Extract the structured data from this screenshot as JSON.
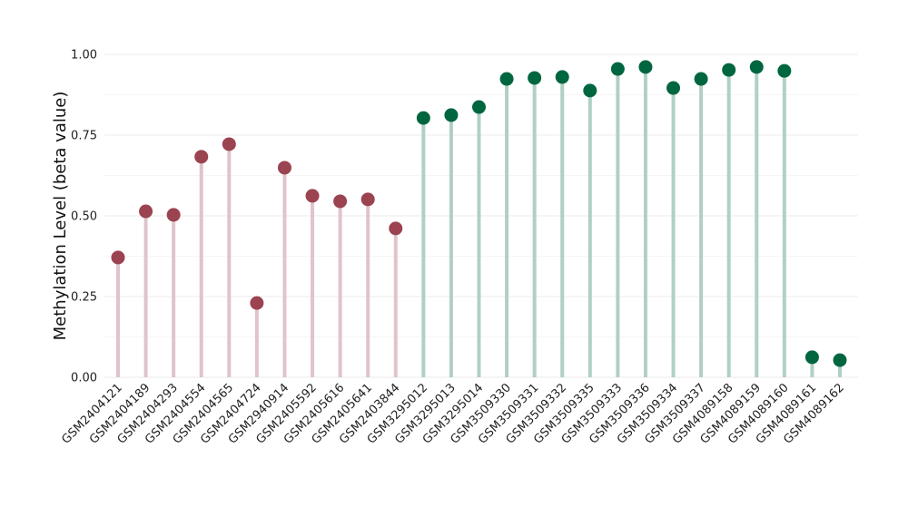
{
  "chart_data": {
    "type": "lollipop",
    "title": "",
    "xlabel": "",
    "ylabel": "Methylation Level (beta value)",
    "ylim": [
      0,
      1
    ],
    "yticks": [
      "0.00",
      "0.25",
      "0.50",
      "0.75",
      "1.00"
    ],
    "grid": true,
    "legend": "none",
    "colors": {
      "group1": "#9b4350",
      "group1_stem": "#e0c4c9",
      "group2": "#00663f",
      "group2_stem": "#b0d0c4"
    },
    "categories": [
      "GSM2404121",
      "GSM2404189",
      "GSM2404293",
      "GSM2404554",
      "GSM2404565",
      "GSM2404724",
      "GSM2940914",
      "GSM2405592",
      "GSM2405616",
      "GSM2405641",
      "GSM2403844",
      "GSM3295012",
      "GSM3295013",
      "GSM3295014",
      "GSM3509330",
      "GSM3509331",
      "GSM3509332",
      "GSM3509335",
      "GSM3509333",
      "GSM3509336",
      "GSM3509334",
      "GSM3509337",
      "GSM4089158",
      "GSM4089159",
      "GSM4089160",
      "GSM4089161",
      "GSM4089162"
    ],
    "values": [
      0.371,
      0.514,
      0.503,
      0.683,
      0.722,
      0.23,
      0.649,
      0.562,
      0.545,
      0.551,
      0.461,
      0.803,
      0.812,
      0.837,
      0.924,
      0.927,
      0.93,
      0.888,
      0.955,
      0.961,
      0.896,
      0.924,
      0.952,
      0.961,
      0.949,
      0.062,
      0.053
    ],
    "groups": [
      "group1",
      "group1",
      "group1",
      "group1",
      "group1",
      "group1",
      "group1",
      "group1",
      "group1",
      "group1",
      "group1",
      "group2",
      "group2",
      "group2",
      "group2",
      "group2",
      "group2",
      "group2",
      "group2",
      "group2",
      "group2",
      "group2",
      "group2",
      "group2",
      "group2",
      "group2",
      "group2"
    ]
  }
}
